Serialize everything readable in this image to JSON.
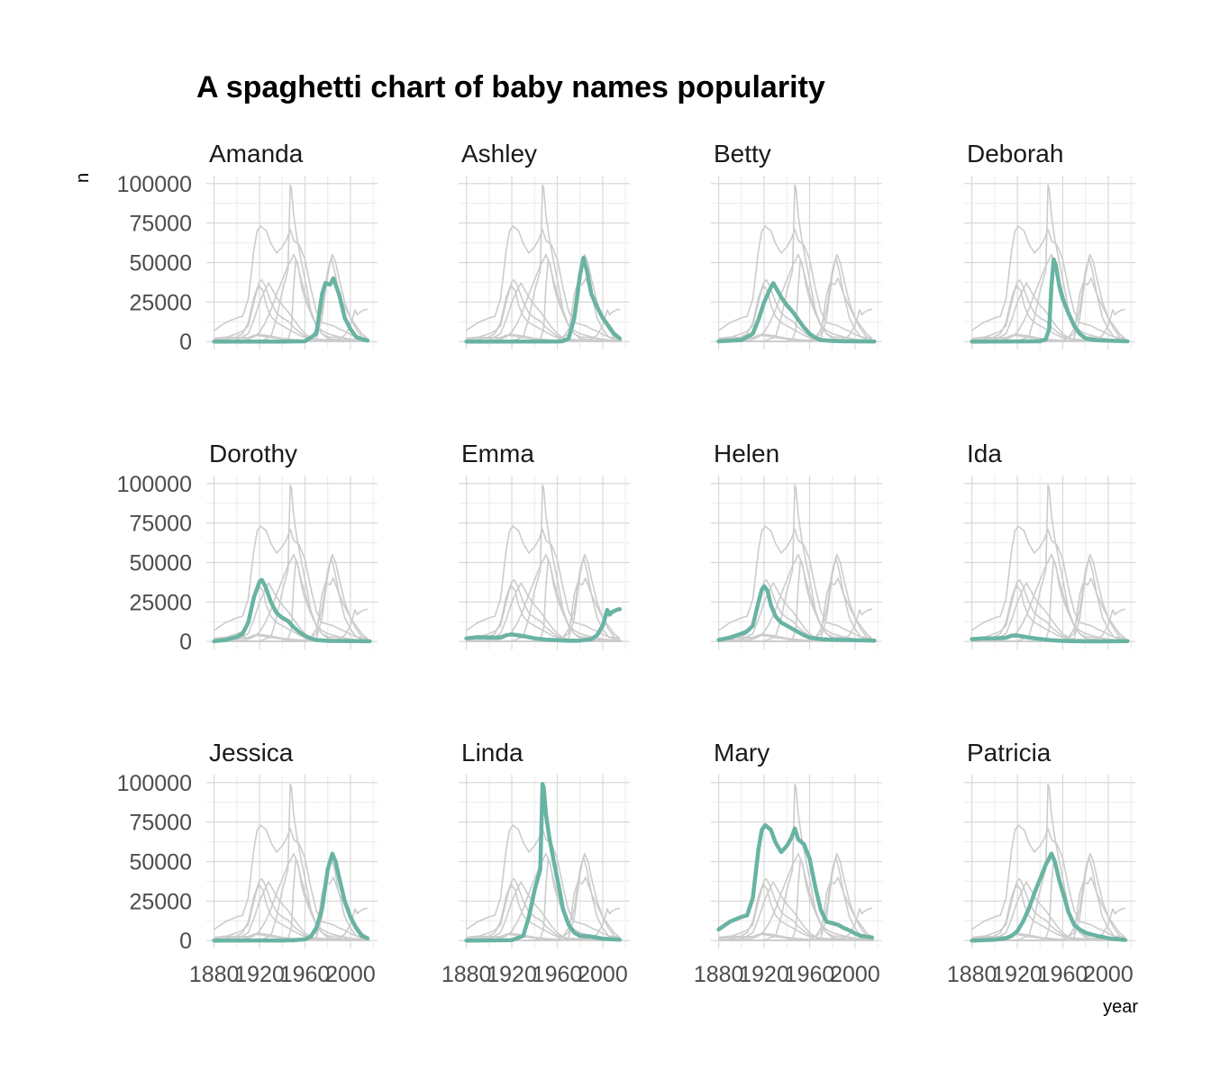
{
  "chart_data": {
    "type": "line",
    "title": "A spaghetti chart of baby names popularity",
    "xlabel": "year",
    "ylabel": "n",
    "xlim": [
      1880,
      2017
    ],
    "ylim": [
      0,
      100000
    ],
    "x_ticks": [
      1880,
      1920,
      1960,
      2000
    ],
    "y_ticks": [
      0,
      25000,
      50000,
      75000,
      100000
    ],
    "x_tick_labels": [
      "1880",
      "1920",
      "1960",
      "2000"
    ],
    "y_tick_labels": [
      "0",
      "25000",
      "50000",
      "75000",
      "100000"
    ],
    "layout": "facet_wrap 3 rows x 4 columns",
    "grid": true,
    "colors": {
      "highlight": "#69b3a2",
      "background_series": "#cccccc",
      "grid": "#d9d9d9"
    },
    "series": [
      {
        "name": "Amanda",
        "points": [
          [
            1880,
            0
          ],
          [
            1940,
            0
          ],
          [
            1960,
            200
          ],
          [
            1970,
            5000
          ],
          [
            1975,
            30000
          ],
          [
            1978,
            37000
          ],
          [
            1982,
            36000
          ],
          [
            1985,
            40000
          ],
          [
            1990,
            30000
          ],
          [
            1995,
            15000
          ],
          [
            2000,
            8000
          ],
          [
            2005,
            3000
          ],
          [
            2010,
            1500
          ],
          [
            2015,
            700
          ]
        ]
      },
      {
        "name": "Ashley",
        "points": [
          [
            1880,
            0
          ],
          [
            1960,
            50
          ],
          [
            1965,
            300
          ],
          [
            1970,
            2000
          ],
          [
            1975,
            15000
          ],
          [
            1980,
            42000
          ],
          [
            1983,
            53000
          ],
          [
            1986,
            45000
          ],
          [
            1990,
            30000
          ],
          [
            1995,
            22000
          ],
          [
            2000,
            15000
          ],
          [
            2005,
            10000
          ],
          [
            2010,
            5000
          ],
          [
            2015,
            2000
          ]
        ]
      },
      {
        "name": "Betty",
        "points": [
          [
            1880,
            200
          ],
          [
            1900,
            1000
          ],
          [
            1910,
            5000
          ],
          [
            1915,
            14000
          ],
          [
            1920,
            25000
          ],
          [
            1925,
            33000
          ],
          [
            1928,
            37000
          ],
          [
            1932,
            32000
          ],
          [
            1935,
            28000
          ],
          [
            1940,
            23000
          ],
          [
            1945,
            19000
          ],
          [
            1950,
            14000
          ],
          [
            1955,
            9000
          ],
          [
            1960,
            5000
          ],
          [
            1965,
            2500
          ],
          [
            1970,
            1000
          ],
          [
            1980,
            400
          ],
          [
            1990,
            200
          ],
          [
            2017,
            100
          ]
        ]
      },
      {
        "name": "Deborah",
        "points": [
          [
            1880,
            0
          ],
          [
            1940,
            200
          ],
          [
            1945,
            1500
          ],
          [
            1948,
            8000
          ],
          [
            1950,
            35000
          ],
          [
            1952,
            52000
          ],
          [
            1954,
            48000
          ],
          [
            1957,
            35000
          ],
          [
            1960,
            27000
          ],
          [
            1965,
            18000
          ],
          [
            1970,
            10000
          ],
          [
            1975,
            5000
          ],
          [
            1980,
            2000
          ],
          [
            1990,
            800
          ],
          [
            2017,
            200
          ]
        ]
      },
      {
        "name": "Dorothy",
        "points": [
          [
            1880,
            200
          ],
          [
            1890,
            1000
          ],
          [
            1900,
            3000
          ],
          [
            1905,
            5000
          ],
          [
            1910,
            12000
          ],
          [
            1915,
            28000
          ],
          [
            1920,
            38000
          ],
          [
            1922,
            39000
          ],
          [
            1925,
            35000
          ],
          [
            1930,
            25000
          ],
          [
            1935,
            18000
          ],
          [
            1940,
            15000
          ],
          [
            1945,
            13000
          ],
          [
            1950,
            9000
          ],
          [
            1955,
            6000
          ],
          [
            1960,
            3500
          ],
          [
            1965,
            2000
          ],
          [
            1970,
            1000
          ],
          [
            1980,
            400
          ],
          [
            2017,
            200
          ]
        ]
      },
      {
        "name": "Emma",
        "points": [
          [
            1880,
            2000
          ],
          [
            1890,
            2800
          ],
          [
            1900,
            2500
          ],
          [
            1910,
            2500
          ],
          [
            1915,
            4000
          ],
          [
            1920,
            4500
          ],
          [
            1930,
            3500
          ],
          [
            1940,
            2000
          ],
          [
            1950,
            1200
          ],
          [
            1960,
            800
          ],
          [
            1970,
            500
          ],
          [
            1980,
            600
          ],
          [
            1990,
            1500
          ],
          [
            1995,
            4000
          ],
          [
            2000,
            10000
          ],
          [
            2004,
            20000
          ],
          [
            2006,
            17000
          ],
          [
            2008,
            18500
          ],
          [
            2012,
            20000
          ],
          [
            2015,
            20500
          ]
        ]
      },
      {
        "name": "Helen",
        "points": [
          [
            1880,
            1000
          ],
          [
            1890,
            2500
          ],
          [
            1900,
            5000
          ],
          [
            1905,
            6500
          ],
          [
            1910,
            10000
          ],
          [
            1915,
            25000
          ],
          [
            1918,
            33000
          ],
          [
            1920,
            35000
          ],
          [
            1923,
            32000
          ],
          [
            1926,
            23000
          ],
          [
            1930,
            16000
          ],
          [
            1935,
            12000
          ],
          [
            1940,
            10000
          ],
          [
            1945,
            8000
          ],
          [
            1950,
            6000
          ],
          [
            1955,
            4000
          ],
          [
            1960,
            2500
          ],
          [
            1970,
            1500
          ],
          [
            1980,
            1100
          ],
          [
            1990,
            1000
          ],
          [
            2000,
            800
          ],
          [
            2017,
            600
          ]
        ]
      },
      {
        "name": "Ida",
        "points": [
          [
            1880,
            1500
          ],
          [
            1890,
            2000
          ],
          [
            1900,
            2000
          ],
          [
            1910,
            2400
          ],
          [
            1915,
            3800
          ],
          [
            1920,
            3800
          ],
          [
            1930,
            2500
          ],
          [
            1940,
            1600
          ],
          [
            1950,
            800
          ],
          [
            1960,
            400
          ],
          [
            1970,
            200
          ],
          [
            1980,
            150
          ],
          [
            2000,
            150
          ],
          [
            2017,
            300
          ]
        ]
      },
      {
        "name": "Jessica",
        "points": [
          [
            1880,
            0
          ],
          [
            1940,
            100
          ],
          [
            1950,
            200
          ],
          [
            1960,
            800
          ],
          [
            1965,
            2500
          ],
          [
            1970,
            8000
          ],
          [
            1975,
            20000
          ],
          [
            1980,
            45000
          ],
          [
            1984,
            55000
          ],
          [
            1987,
            50000
          ],
          [
            1990,
            40000
          ],
          [
            1995,
            25000
          ],
          [
            2000,
            15000
          ],
          [
            2005,
            8000
          ],
          [
            2010,
            3000
          ],
          [
            2015,
            1500
          ]
        ]
      },
      {
        "name": "Linda",
        "points": [
          [
            1880,
            0
          ],
          [
            1920,
            300
          ],
          [
            1930,
            3000
          ],
          [
            1935,
            15000
          ],
          [
            1940,
            32000
          ],
          [
            1945,
            45000
          ],
          [
            1946,
            70000
          ],
          [
            1947,
            99000
          ],
          [
            1948,
            97000
          ],
          [
            1950,
            80000
          ],
          [
            1953,
            65000
          ],
          [
            1957,
            50000
          ],
          [
            1962,
            32000
          ],
          [
            1965,
            20000
          ],
          [
            1970,
            10000
          ],
          [
            1975,
            5000
          ],
          [
            1980,
            3000
          ],
          [
            1990,
            2500
          ],
          [
            2000,
            1200
          ],
          [
            2015,
            500
          ]
        ]
      },
      {
        "name": "Mary",
        "points": [
          [
            1880,
            7000
          ],
          [
            1890,
            12000
          ],
          [
            1900,
            15000
          ],
          [
            1905,
            16000
          ],
          [
            1910,
            27000
          ],
          [
            1915,
            58000
          ],
          [
            1918,
            70000
          ],
          [
            1921,
            73000
          ],
          [
            1926,
            70000
          ],
          [
            1930,
            62000
          ],
          [
            1935,
            56000
          ],
          [
            1940,
            60000
          ],
          [
            1944,
            65000
          ],
          [
            1947,
            71000
          ],
          [
            1950,
            64000
          ],
          [
            1955,
            61000
          ],
          [
            1960,
            52000
          ],
          [
            1965,
            34000
          ],
          [
            1970,
            19000
          ],
          [
            1975,
            12000
          ],
          [
            1980,
            11000
          ],
          [
            1985,
            10000
          ],
          [
            1990,
            8000
          ],
          [
            1995,
            6500
          ],
          [
            2000,
            4500
          ],
          [
            2005,
            3000
          ],
          [
            2010,
            2500
          ],
          [
            2015,
            2000
          ]
        ]
      },
      {
        "name": "Patricia",
        "points": [
          [
            1880,
            0
          ],
          [
            1900,
            500
          ],
          [
            1910,
            1500
          ],
          [
            1915,
            3000
          ],
          [
            1920,
            6000
          ],
          [
            1925,
            12000
          ],
          [
            1930,
            20000
          ],
          [
            1935,
            30000
          ],
          [
            1940,
            39000
          ],
          [
            1945,
            48000
          ],
          [
            1948,
            52000
          ],
          [
            1950,
            55000
          ],
          [
            1953,
            50000
          ],
          [
            1957,
            38000
          ],
          [
            1962,
            26000
          ],
          [
            1965,
            18000
          ],
          [
            1970,
            10000
          ],
          [
            1975,
            7000
          ],
          [
            1980,
            5000
          ],
          [
            1990,
            3000
          ],
          [
            2000,
            1500
          ],
          [
            2010,
            700
          ],
          [
            2015,
            400
          ]
        ]
      }
    ]
  }
}
